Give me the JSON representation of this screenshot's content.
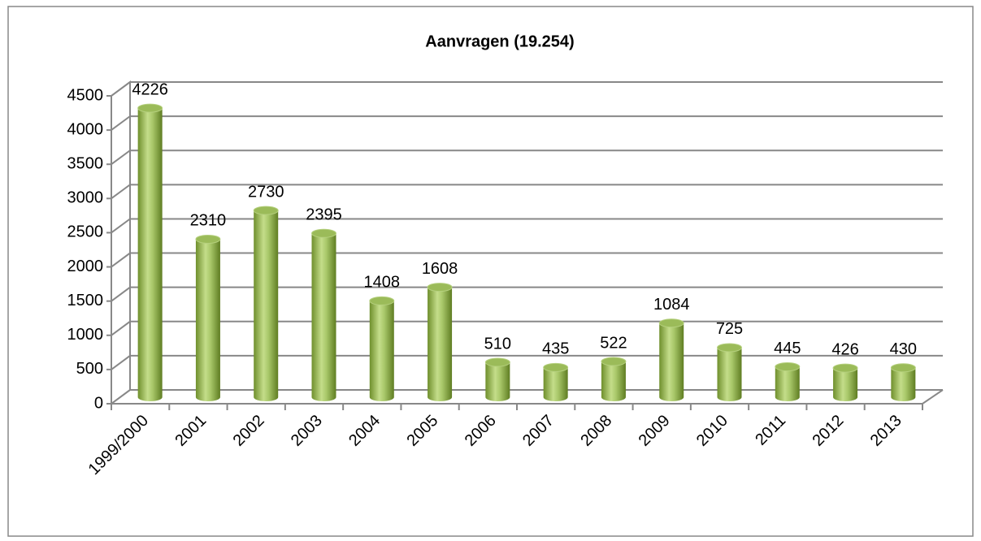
{
  "chart_data": {
    "type": "bar",
    "title": "Aanvragen (19.254)",
    "categories": [
      "1999/2000",
      "2001",
      "2002",
      "2003",
      "2004",
      "2005",
      "2006",
      "2007",
      "2008",
      "2009",
      "2010",
      "2011",
      "2012",
      "2013"
    ],
    "values": [
      4226,
      2310,
      2730,
      2395,
      1408,
      1608,
      510,
      435,
      522,
      1084,
      725,
      445,
      426,
      430
    ],
    "color": "#9bbb59",
    "ylim": [
      0,
      4500
    ],
    "yticks": [
      0,
      500,
      1000,
      1500,
      2000,
      2500,
      3000,
      3500,
      4000,
      4500
    ],
    "grid": true
  }
}
